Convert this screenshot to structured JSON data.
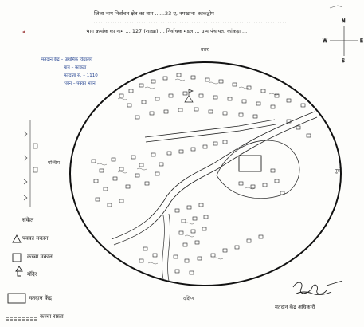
{
  "header": {
    "line1": "जिला नाम निर्वाचन क्षेत्र का नाम ......23 ए, नमखाना–काकद्वीप",
    "line2": "भाग क्रमांक का नाम ... 127 (शाखा) ... निर्वाचक मंडल ... ग्राम पंचायत, कांकड़ा ..."
  },
  "compass": {
    "north": "N",
    "south": "S",
    "east": "E",
    "west": "W"
  },
  "directions": {
    "top": "उत्तर",
    "right": "पूर्व",
    "bottom": "दक्षिण",
    "left": "पश्चिम"
  },
  "booth_info": [
    "मतदान केंद्र – प्राथमिक विद्यालय",
    "ग्राम – कांकड़ा",
    "मतदाता सं. – 1110",
    "भवन – पक्का भवन"
  ],
  "legend": {
    "title": "संकेत",
    "items": [
      {
        "label": "पक्का मकान"
      },
      {
        "label": "कच्चा मकान"
      },
      {
        "label": "मंदिर"
      },
      {
        "label": "मतदान केंद्र"
      },
      {
        "label": "कच्चा रास्ता"
      }
    ]
  },
  "signature": {
    "caption": "मतदान केंद्र अधिकारी"
  },
  "colors": {
    "ink": "#1e1e1e",
    "pen_blue": "#1f3f8f",
    "paper": "#fdfdfb"
  }
}
